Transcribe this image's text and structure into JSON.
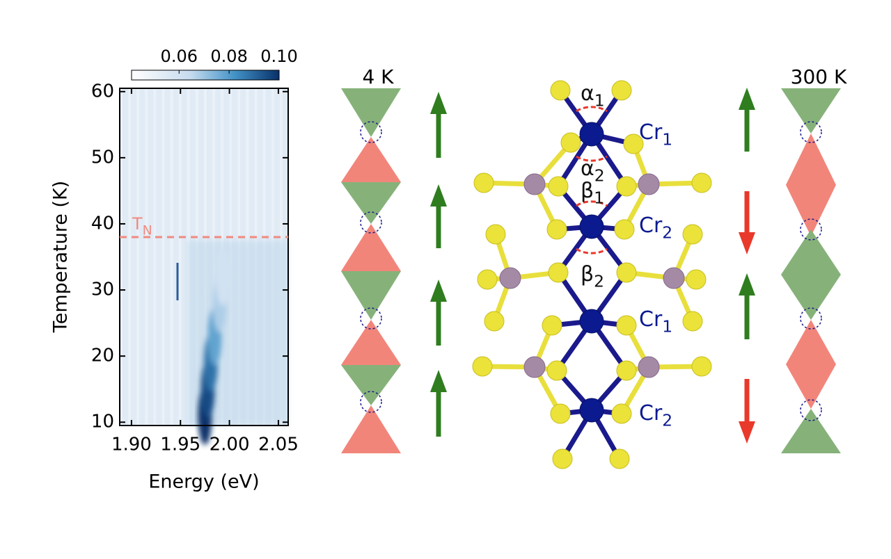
{
  "chart_data": {
    "type": "heatmap",
    "xlabel": "Energy (eV)",
    "ylabel": "Temperature (K)",
    "xlim": [
      1.888,
      2.06
    ],
    "ylim": [
      9.5,
      60.5
    ],
    "xticks": [
      {
        "value": 1.9,
        "label": "1.90"
      },
      1.95,
      {
        "value": 2.0,
        "label": "2.00"
      },
      2.05
    ],
    "yticks": [
      10,
      20,
      30,
      40,
      50,
      60
    ],
    "clim": [
      0.041,
      0.1
    ],
    "cticks": [
      {
        "value": 0.06,
        "label": "0.06"
      },
      {
        "value": 0.08,
        "label": "0.08"
      },
      {
        "value": 0.1,
        "label": "0.10"
      }
    ],
    "ridge": {
      "x": [
        1.975,
        1.978,
        1.981,
        1.985,
        1.99,
        1.993
      ],
      "y": [
        11,
        15,
        19,
        23,
        28,
        32
      ],
      "values": [
        0.1,
        0.095,
        0.088,
        0.078,
        0.068,
        0.06
      ]
    },
    "annotation": {
      "text": "T",
      "sub": "N",
      "y": 38
    }
  },
  "diagram": {
    "left_title": "4 K",
    "right_title": "300 K",
    "labels": [
      {
        "text": "α",
        "sub": "1"
      },
      {
        "text": "α",
        "sub": "2"
      },
      {
        "text": "β",
        "sub": "1"
      },
      {
        "text": "β",
        "sub": "2"
      },
      {
        "text": "Cr",
        "sub": "1"
      },
      {
        "text": "Cr",
        "sub": "2"
      },
      {
        "text": "Cr",
        "sub": "1"
      },
      {
        "text": "Cr",
        "sub": "2"
      }
    ]
  }
}
